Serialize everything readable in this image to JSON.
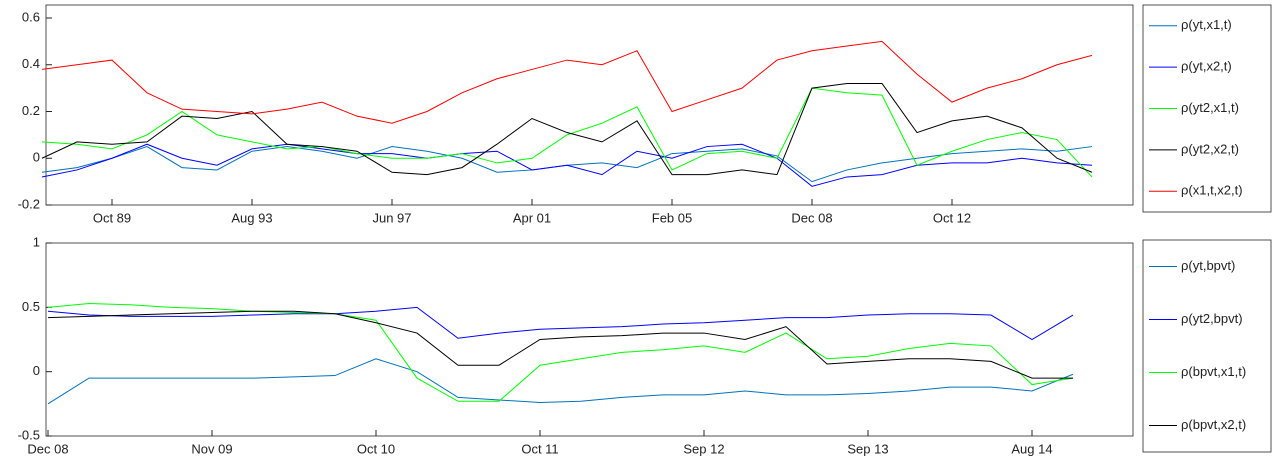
{
  "chart_data": [
    {
      "type": "line",
      "categories": [
        null,
        null,
        "Oct 89",
        null,
        null,
        null,
        "Aug 93",
        null,
        null,
        null,
        "Jun 97",
        null,
        null,
        null,
        "Apr 01",
        null,
        null,
        null,
        "Feb 05",
        null,
        null,
        null,
        "Dec 08",
        null,
        null,
        null,
        "Oct 12",
        null,
        null,
        null,
        null
      ],
      "ylim": [
        -0.2,
        0.6
      ],
      "yticks": [
        -0.2,
        0,
        0.2,
        0.4,
        0.6
      ],
      "series": [
        {
          "name": "ρ(yt,x1,t)",
          "color": "#0072bd",
          "values": [
            -0.06,
            -0.04,
            0.0,
            0.05,
            -0.04,
            -0.05,
            0.03,
            0.05,
            0.03,
            0.0,
            0.05,
            0.03,
            0.0,
            -0.06,
            -0.05,
            -0.03,
            -0.02,
            -0.04,
            0.02,
            0.03,
            0.04,
            0.01,
            -0.1,
            -0.05,
            -0.02,
            0.0,
            0.02,
            0.03,
            0.04,
            0.03,
            0.05
          ]
        },
        {
          "name": "ρ(yt,x2,t)",
          "color": "#0000ff",
          "values": [
            -0.08,
            -0.05,
            0.0,
            0.06,
            0.0,
            -0.03,
            0.04,
            0.06,
            0.04,
            0.02,
            0.02,
            0.0,
            0.02,
            0.03,
            -0.05,
            -0.03,
            -0.07,
            0.03,
            0.0,
            0.05,
            0.06,
            0.0,
            -0.12,
            -0.08,
            -0.07,
            -0.03,
            -0.02,
            -0.02,
            0.0,
            -0.02,
            -0.03
          ]
        },
        {
          "name": "ρ(yt2,x1,t)",
          "color": "#00ff00",
          "values": [
            0.07,
            0.06,
            0.04,
            0.1,
            0.2,
            0.1,
            0.07,
            0.04,
            0.05,
            0.02,
            0.0,
            0.0,
            0.02,
            -0.02,
            0.0,
            0.1,
            0.15,
            0.22,
            -0.05,
            0.02,
            0.03,
            0.0,
            0.3,
            0.28,
            0.27,
            -0.03,
            0.03,
            0.08,
            0.11,
            0.08,
            -0.08
          ]
        },
        {
          "name": "ρ(yt2,x2,t)",
          "color": "#000000",
          "values": [
            0.0,
            0.07,
            0.06,
            0.07,
            0.18,
            0.17,
            0.2,
            0.06,
            0.05,
            0.03,
            -0.06,
            -0.07,
            -0.04,
            0.06,
            0.17,
            0.11,
            0.07,
            0.16,
            -0.07,
            -0.07,
            -0.05,
            -0.07,
            0.3,
            0.32,
            0.32,
            0.11,
            0.16,
            0.18,
            0.13,
            0.0,
            -0.06
          ]
        },
        {
          "name": "ρ(x1,t,x2,t)",
          "color": "#ff0000",
          "values": [
            0.38,
            0.4,
            0.42,
            0.28,
            0.21,
            0.2,
            0.19,
            0.21,
            0.24,
            0.18,
            0.15,
            0.2,
            0.28,
            0.34,
            0.38,
            0.42,
            0.4,
            0.46,
            0.2,
            0.25,
            0.3,
            0.42,
            0.46,
            0.48,
            0.5,
            0.36,
            0.24,
            0.3,
            0.34,
            0.4,
            0.44
          ]
        }
      ]
    },
    {
      "type": "line",
      "categories": [
        "Dec 08",
        null,
        null,
        null,
        "Nov 09",
        null,
        null,
        null,
        "Oct 10",
        null,
        null,
        null,
        "Oct 11",
        null,
        null,
        null,
        "Sep 12",
        null,
        null,
        null,
        "Sep 13",
        null,
        null,
        null,
        "Aug 14",
        null
      ],
      "ylim": [
        -0.5,
        1
      ],
      "yticks": [
        -0.5,
        0,
        0.5,
        1
      ],
      "series": [
        {
          "name": "ρ(yt,bpvt)",
          "color": "#0072bd",
          "values": [
            -0.25,
            -0.05,
            -0.05,
            -0.05,
            -0.05,
            -0.05,
            -0.04,
            -0.03,
            0.1,
            0.0,
            -0.2,
            -0.22,
            -0.24,
            -0.23,
            -0.2,
            -0.18,
            -0.18,
            -0.15,
            -0.18,
            -0.18,
            -0.17,
            -0.15,
            -0.12,
            -0.12,
            -0.15,
            -0.02
          ]
        },
        {
          "name": "ρ(yt2,bpvt)",
          "color": "#0000ff",
          "values": [
            0.47,
            0.44,
            0.43,
            0.43,
            0.43,
            0.44,
            0.45,
            0.45,
            0.47,
            0.5,
            0.26,
            0.3,
            0.33,
            0.34,
            0.35,
            0.37,
            0.38,
            0.4,
            0.42,
            0.42,
            0.44,
            0.45,
            0.45,
            0.44,
            0.25,
            0.44
          ]
        },
        {
          "name": "ρ(bpvt,x1,t)",
          "color": "#00ff00",
          "values": [
            0.5,
            0.53,
            0.52,
            0.5,
            0.49,
            0.47,
            0.46,
            0.45,
            0.4,
            -0.05,
            -0.23,
            -0.23,
            0.05,
            0.1,
            0.15,
            0.17,
            0.2,
            0.15,
            0.3,
            0.1,
            0.12,
            0.18,
            0.22,
            0.2,
            -0.1,
            -0.05
          ]
        },
        {
          "name": "ρ(bpvt,x2,t)",
          "color": "#000000",
          "values": [
            0.42,
            0.43,
            0.44,
            0.45,
            0.46,
            0.47,
            0.47,
            0.45,
            0.38,
            0.3,
            0.05,
            0.05,
            0.25,
            0.27,
            0.28,
            0.3,
            0.3,
            0.25,
            0.35,
            0.06,
            0.08,
            0.1,
            0.1,
            0.08,
            -0.05,
            -0.05
          ]
        }
      ]
    }
  ]
}
